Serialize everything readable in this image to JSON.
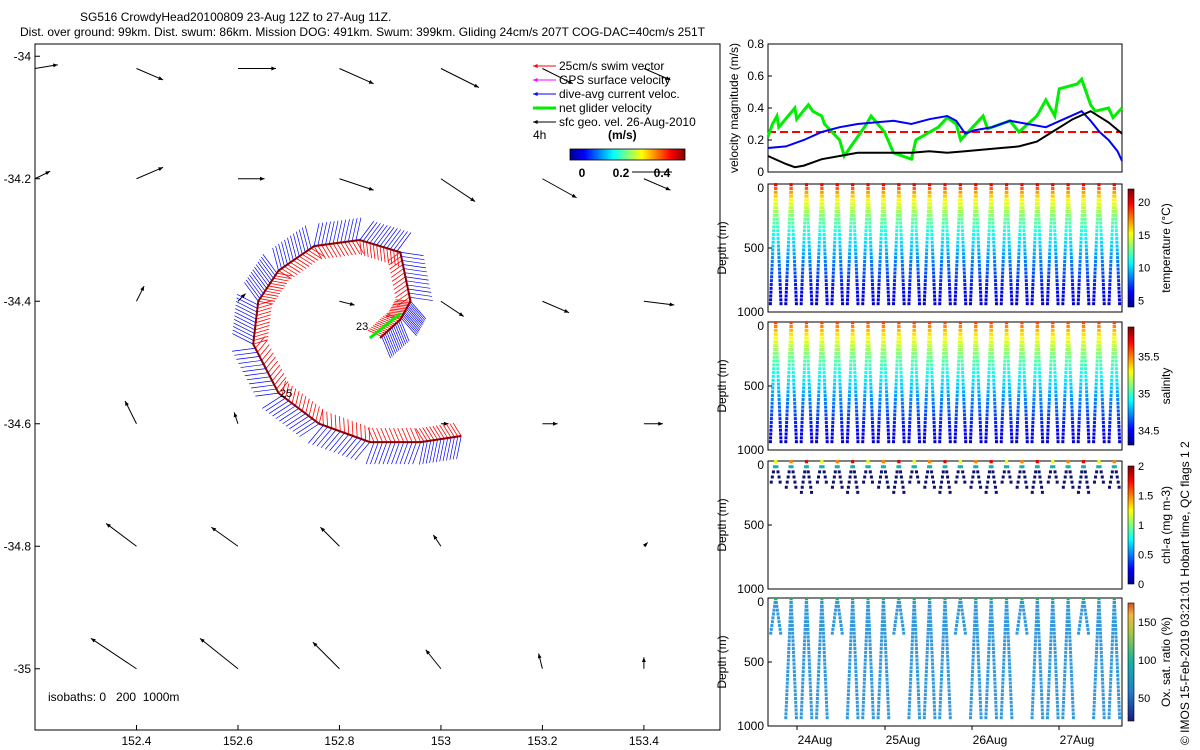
{
  "header": {
    "line1": "SG516 CrowdyHead20100809 23-Aug 12Z to 27-Aug 11Z.",
    "line2": "Dist. over ground: 99km. Dist. swum: 86km. Mission DOG: 491km. Swum: 399km. Gliding 24cm/s 207T COG-DAC=40cm/s 251T"
  },
  "map": {
    "isobaths_text": "isobaths: 0   200  1000m",
    "track_labels": [
      "23",
      "25"
    ],
    "legend": [
      {
        "label": "25cm/s swim vector",
        "color": "#ff0000",
        "width": 1
      },
      {
        "label": "GPS surface velocity",
        "color": "#ff00ff",
        "width": 1
      },
      {
        "label": "dive-avg current veloc.",
        "color": "#0000ff",
        "width": 1
      },
      {
        "label": "net glider velocity",
        "color": "#00ee00",
        "width": 3
      },
      {
        "label": "sfc geo. vel. 26-Aug-2010",
        "color": "#000000",
        "width": 1
      }
    ],
    "colorbar": {
      "label_left": "4h",
      "unit": "(m/s)",
      "ticks": [
        "0",
        "0.2",
        "0.4"
      ]
    }
  },
  "panels": {
    "depth_label": "Depth (m)",
    "depth_ticks": [
      "0",
      "500",
      "1000"
    ],
    "date_ticks": [
      "24Aug",
      "25Aug",
      "26Aug",
      "27Aug"
    ],
    "qc_label": "Hobart time, QC flags 1  2",
    "footer": "© IMOS 15-Feb-2019 03:21:01"
  },
  "chart_data": [
    {
      "type": "scatter",
      "title": "map",
      "xlabel": "",
      "ylabel": "",
      "xlim": [
        152.2,
        153.55
      ],
      "ylim": [
        -35.1,
        -33.98
      ],
      "x_ticks": [
        152.4,
        152.6,
        152.8,
        153,
        153.2,
        153.4
      ],
      "x_tick_labels": [
        "152.4",
        "152.6",
        "152.8",
        "153",
        "153.2",
        "153.4"
      ],
      "y_ticks": [
        -34,
        -34.2,
        -34.4,
        -34.6,
        -34.8,
        -35
      ],
      "y_tick_labels": [
        "-34",
        "-34.2",
        "-34.4",
        "-34.6",
        "-34.8",
        "-35"
      ],
      "glider_track": [
        [
          153.04,
          -34.62
        ],
        [
          152.96,
          -34.63
        ],
        [
          152.86,
          -34.63
        ],
        [
          152.76,
          -34.6
        ],
        [
          152.68,
          -34.55
        ],
        [
          152.63,
          -34.47
        ],
        [
          152.64,
          -34.4
        ],
        [
          152.68,
          -34.35
        ],
        [
          152.75,
          -34.31
        ],
        [
          152.84,
          -34.3
        ],
        [
          152.92,
          -34.32
        ],
        [
          152.94,
          -34.4
        ],
        [
          152.92,
          -34.43
        ],
        [
          152.88,
          -34.46
        ]
      ],
      "net_velocity": [
        [
          152.86,
          -34.46
        ],
        [
          152.92,
          -34.42
        ]
      ],
      "sfc_vectors": [
        {
          "lon": 152.2,
          "lat": -34.02,
          "u": 0.6,
          "v": 0.1
        },
        {
          "lon": 152.4,
          "lat": -34.02,
          "u": 0.7,
          "v": -0.3
        },
        {
          "lon": 152.6,
          "lat": -34.02,
          "u": 1.0,
          "v": 0.0
        },
        {
          "lon": 152.8,
          "lat": -34.02,
          "u": 0.9,
          "v": -0.4
        },
        {
          "lon": 153.0,
          "lat": -34.02,
          "u": 1.0,
          "v": -0.5
        },
        {
          "lon": 153.2,
          "lat": -34.02,
          "u": 0.8,
          "v": -0.4
        },
        {
          "lon": 153.4,
          "lat": -34.02,
          "u": 0.7,
          "v": -0.3
        },
        {
          "lon": 152.2,
          "lat": -34.2,
          "u": 0.4,
          "v": 0.2
        },
        {
          "lon": 152.4,
          "lat": -34.2,
          "u": 0.7,
          "v": 0.3
        },
        {
          "lon": 152.6,
          "lat": -34.2,
          "u": 0.7,
          "v": 0.0
        },
        {
          "lon": 152.8,
          "lat": -34.2,
          "u": 0.9,
          "v": -0.3
        },
        {
          "lon": 153.0,
          "lat": -34.2,
          "u": 0.9,
          "v": -0.6
        },
        {
          "lon": 153.2,
          "lat": -34.2,
          "u": 0.9,
          "v": -0.5
        },
        {
          "lon": 153.4,
          "lat": -34.2,
          "u": 0.7,
          "v": -0.3
        },
        {
          "lon": 152.4,
          "lat": -34.4,
          "u": 0.2,
          "v": 0.4
        },
        {
          "lon": 152.6,
          "lat": -34.4,
          "u": 0.2,
          "v": 0.2
        },
        {
          "lon": 152.8,
          "lat": -34.4,
          "u": 0.4,
          "v": -0.1
        },
        {
          "lon": 153.0,
          "lat": -34.4,
          "u": 0.6,
          "v": -0.4
        },
        {
          "lon": 153.2,
          "lat": -34.4,
          "u": 0.7,
          "v": -0.3
        },
        {
          "lon": 153.4,
          "lat": -34.4,
          "u": 0.8,
          "v": -0.1
        },
        {
          "lon": 152.4,
          "lat": -34.6,
          "u": -0.3,
          "v": 0.6
        },
        {
          "lon": 152.6,
          "lat": -34.6,
          "u": -0.1,
          "v": 0.3
        },
        {
          "lon": 153.0,
          "lat": -34.6,
          "u": 0.2,
          "v": 0.0
        },
        {
          "lon": 153.2,
          "lat": -34.6,
          "u": 0.4,
          "v": 0.0
        },
        {
          "lon": 153.4,
          "lat": -34.6,
          "u": 0.5,
          "v": 0.0
        },
        {
          "lon": 152.4,
          "lat": -34.8,
          "u": -0.8,
          "v": 0.6
        },
        {
          "lon": 152.6,
          "lat": -34.8,
          "u": -0.7,
          "v": 0.5
        },
        {
          "lon": 152.8,
          "lat": -34.8,
          "u": -0.5,
          "v": 0.5
        },
        {
          "lon": 153.0,
          "lat": -34.8,
          "u": -0.2,
          "v": 0.3
        },
        {
          "lon": 153.4,
          "lat": -34.8,
          "u": 0.1,
          "v": 0.1
        },
        {
          "lon": 152.4,
          "lat": -35.0,
          "u": -1.2,
          "v": 0.8
        },
        {
          "lon": 152.6,
          "lat": -35.0,
          "u": -1.0,
          "v": 0.8
        },
        {
          "lon": 152.8,
          "lat": -35.0,
          "u": -0.7,
          "v": 0.7
        },
        {
          "lon": 153.0,
          "lat": -35.0,
          "u": -0.4,
          "v": 0.5
        },
        {
          "lon": 153.2,
          "lat": -35.0,
          "u": -0.1,
          "v": 0.4
        },
        {
          "lon": 153.4,
          "lat": -35.0,
          "u": 0.0,
          "v": 0.3
        }
      ]
    },
    {
      "type": "line",
      "ylabel": "velocity magnitude (m/s)",
      "xlim": [
        23.5,
        27.45
      ],
      "ylim": [
        0,
        0.8
      ],
      "y_ticks": [
        0,
        0.2,
        0.4,
        0.6,
        0.8
      ],
      "y_tick_labels": [
        "0",
        "0.2",
        "0.4",
        "0.6",
        "0.8"
      ],
      "series": [
        {
          "name": "swim",
          "color": "#ff0000",
          "dashed": true,
          "x": [
            23.5,
            27.45
          ],
          "y": [
            0.25,
            0.25
          ]
        },
        {
          "name": "net",
          "color": "#00ee00",
          "x": [
            23.5,
            23.55,
            23.6,
            23.62,
            23.8,
            23.82,
            23.95,
            24.0,
            24.1,
            24.13,
            24.3,
            24.35,
            24.6,
            24.65,
            24.8,
            24.9,
            25.1,
            25.15,
            25.4,
            25.5,
            25.6,
            25.65,
            25.9,
            25.95,
            26.2,
            26.3,
            26.5,
            26.6,
            26.7,
            26.75,
            26.95,
            27.0,
            27.1,
            27.15,
            27.3,
            27.35,
            27.45
          ],
          "y": [
            0.22,
            0.3,
            0.35,
            0.28,
            0.4,
            0.33,
            0.42,
            0.38,
            0.35,
            0.3,
            0.2,
            0.1,
            0.3,
            0.35,
            0.25,
            0.12,
            0.08,
            0.2,
            0.28,
            0.34,
            0.3,
            0.2,
            0.35,
            0.27,
            0.32,
            0.25,
            0.35,
            0.45,
            0.35,
            0.52,
            0.55,
            0.58,
            0.42,
            0.38,
            0.4,
            0.34,
            0.4
          ]
        },
        {
          "name": "dac",
          "color": "#0000ff",
          "x": [
            23.5,
            23.7,
            23.9,
            24.1,
            24.3,
            24.5,
            24.7,
            24.9,
            25.1,
            25.3,
            25.5,
            25.6,
            25.7,
            25.8,
            26.0,
            26.2,
            26.4,
            26.6,
            26.8,
            27.0,
            27.1,
            27.2,
            27.3,
            27.4,
            27.45
          ],
          "y": [
            0.15,
            0.16,
            0.2,
            0.25,
            0.28,
            0.3,
            0.31,
            0.32,
            0.3,
            0.33,
            0.35,
            0.32,
            0.24,
            0.26,
            0.28,
            0.32,
            0.3,
            0.28,
            0.33,
            0.38,
            0.32,
            0.25,
            0.2,
            0.13,
            0.07
          ]
        },
        {
          "name": "sfc",
          "color": "#000000",
          "x": [
            23.5,
            23.7,
            23.8,
            23.9,
            24.1,
            24.3,
            24.5,
            24.7,
            24.9,
            25.1,
            25.3,
            25.5,
            25.7,
            25.9,
            26.1,
            26.3,
            26.5,
            26.7,
            26.9,
            27.1,
            27.3,
            27.45
          ],
          "y": [
            0.1,
            0.05,
            0.03,
            0.04,
            0.08,
            0.1,
            0.12,
            0.12,
            0.12,
            0.12,
            0.13,
            0.12,
            0.13,
            0.14,
            0.15,
            0.16,
            0.19,
            0.26,
            0.33,
            0.38,
            0.31,
            0.24
          ]
        }
      ]
    },
    {
      "type": "scatter",
      "ylabel": "Depth (m)",
      "colorbar_label": "temperature (°C)",
      "color_ticks": [
        "5",
        "10",
        "15",
        "20"
      ],
      "clim": [
        4,
        22
      ],
      "ylim": [
        0,
        1000
      ],
      "dives": 23,
      "max_depth": 1000
    },
    {
      "type": "scatter",
      "ylabel": "Depth (m)",
      "colorbar_label": "salinity",
      "color_ticks": [
        "34.5",
        "35",
        "35.5"
      ],
      "clim": [
        34.3,
        35.9
      ],
      "ylim": [
        0,
        1000
      ],
      "dives": 23,
      "max_depth": 1000
    },
    {
      "type": "scatter",
      "ylabel": "Depth (m)",
      "colorbar_label": "chl-a (mg m-3)",
      "color_ticks": [
        "0",
        "0.5",
        "1",
        "1.5",
        "2"
      ],
      "clim": [
        0,
        2
      ],
      "ylim": [
        0,
        1000
      ],
      "dives": 23,
      "max_depth": 300
    },
    {
      "type": "scatter",
      "ylabel": "Depth (m)",
      "colorbar_label": "Ox. sat. ratio (%)",
      "color_ticks": [
        "50",
        "100",
        "150"
      ],
      "clim": [
        20,
        175
      ],
      "ylim": [
        0,
        1000
      ],
      "dives": 23,
      "max_depth": 1000
    }
  ]
}
